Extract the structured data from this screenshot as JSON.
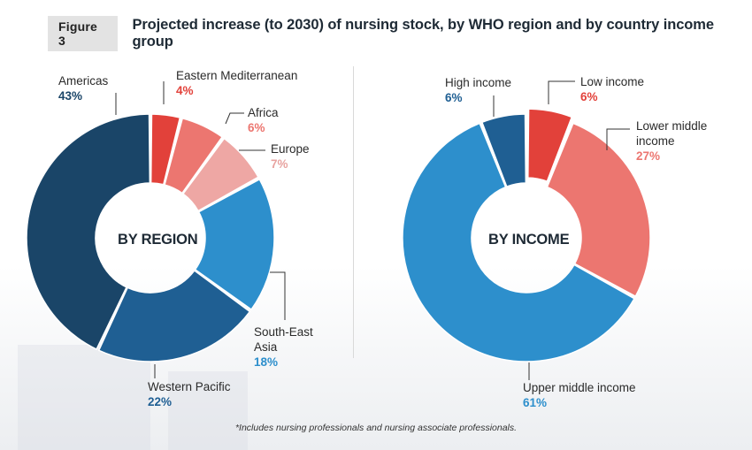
{
  "header": {
    "figure_label": "Figure 3",
    "title": "Projected increase (to 2030) of nursing stock, by WHO region and by country income group"
  },
  "footnote": "*Includes nursing professionals and nursing associate professionals.",
  "chart_data": [
    {
      "type": "pie",
      "center_label": "BY REGION",
      "categories": [
        "Eastern Mediterranean",
        "Africa",
        "Europe",
        "South-East Asia",
        "Western Pacific",
        "Americas"
      ],
      "values": [
        4,
        6,
        7,
        18,
        22,
        43
      ],
      "value_labels": [
        "4%",
        "6%",
        "7%",
        "18%",
        "22%",
        "43%"
      ],
      "colors": [
        "#e2413a",
        "#ec7670",
        "#eea7a4",
        "#2d8fcc",
        "#1f5f93",
        "#1a4568"
      ]
    },
    {
      "type": "pie",
      "center_label": "BY INCOME",
      "categories": [
        "Low income",
        "Lower middle income",
        "Upper middle income",
        "High income"
      ],
      "values": [
        6,
        27,
        61,
        6
      ],
      "value_labels": [
        "6%",
        "27%",
        "61%",
        "6%"
      ],
      "colors": [
        "#e2413a",
        "#ec7670",
        "#2d8fcc",
        "#1f5f93"
      ]
    }
  ],
  "labels": {
    "region": {
      "americas": {
        "name": "Americas",
        "pct": "43%"
      },
      "eastern_mediterranean": {
        "name": "Eastern Mediterranean",
        "pct": "4%"
      },
      "africa": {
        "name": "Africa",
        "pct": "6%"
      },
      "europe": {
        "name": "Europe",
        "pct": "7%"
      },
      "south_east_asia": {
        "name_line1": "South-East",
        "name_line2": "Asia",
        "pct": "18%"
      },
      "western_pacific": {
        "name": "Western Pacific",
        "pct": "22%"
      }
    },
    "income": {
      "high": {
        "name": "High income",
        "pct": "6%"
      },
      "low": {
        "name": "Low income",
        "pct": "6%"
      },
      "lower_middle": {
        "name_line1": "Lower middle",
        "name_line2": "income",
        "pct": "27%"
      },
      "upper_middle": {
        "name": "Upper middle income",
        "pct": "61%"
      }
    }
  },
  "label_colors": {
    "dark_blue": "#1a4568",
    "mid_blue": "#2d8fcc",
    "red": "#e2413a",
    "salmon": "#ec7670",
    "pink": "#e8a3a0"
  }
}
